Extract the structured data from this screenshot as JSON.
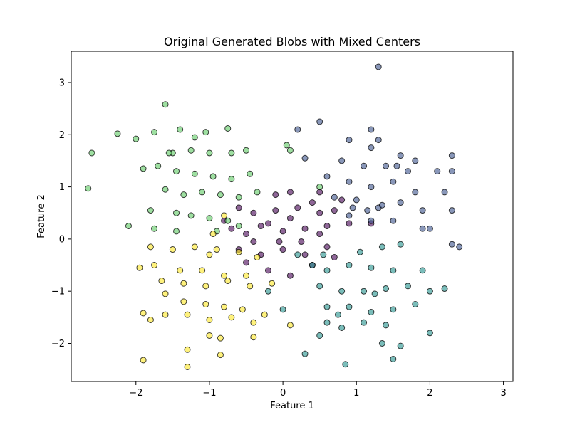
{
  "chart_data": {
    "type": "scatter",
    "title": "Original Generated Blobs with Mixed Centers",
    "xlabel": "Feature 1",
    "ylabel": "Feature 2",
    "xlim": [
      -2.88,
      3.13
    ],
    "ylim": [
      -2.73,
      3.6
    ],
    "xticks": [
      -2,
      -1,
      0,
      1,
      2,
      3
    ],
    "yticks": [
      -2,
      -1,
      0,
      1,
      2,
      3
    ],
    "xtick_labels": [
      "−2",
      "−1",
      "0",
      "1",
      "2",
      "3"
    ],
    "ytick_labels": [
      "−2",
      "−1",
      "0",
      "1",
      "2",
      "3"
    ],
    "grid": false,
    "legend": "none",
    "marker_alpha": 0.6,
    "series": [
      {
        "color": "#440154",
        "points": [
          [
            -0.6,
            0.6
          ],
          [
            -0.4,
            0.5
          ],
          [
            -0.1,
            0.55
          ],
          [
            0.2,
            0.6
          ],
          [
            0.5,
            0.5
          ],
          [
            0.7,
            0.55
          ],
          [
            -0.7,
            0.2
          ],
          [
            -0.5,
            0.1
          ],
          [
            -0.3,
            0.25
          ],
          [
            0.0,
            0.15
          ],
          [
            0.3,
            0.2
          ],
          [
            0.5,
            0.1
          ],
          [
            -0.6,
            -0.2
          ],
          [
            -0.3,
            -0.3
          ],
          [
            0.0,
            -0.2
          ],
          [
            0.3,
            -0.3
          ],
          [
            0.6,
            -0.15
          ],
          [
            0.9,
            0.3
          ],
          [
            -0.2,
            -0.6
          ],
          [
            0.1,
            -0.7
          ],
          [
            -0.5,
            -0.45
          ],
          [
            0.4,
            -0.5
          ],
          [
            0.1,
            0.9
          ],
          [
            -0.1,
            0.85
          ],
          [
            0.5,
            0.9
          ],
          [
            0.8,
            0.75
          ],
          [
            -0.8,
            0.35
          ],
          [
            0.7,
            -0.35
          ],
          [
            1.2,
            0.3
          ],
          [
            -0.05,
            -0.05
          ],
          [
            0.25,
            -0.05
          ],
          [
            -0.4,
            -0.05
          ],
          [
            0.6,
            0.25
          ],
          [
            -0.2,
            0.3
          ],
          [
            0.1,
            0.4
          ],
          [
            0.4,
            0.7
          ]
        ]
      },
      {
        "color": "#3b528b",
        "points": [
          [
            0.9,
            1.9
          ],
          [
            1.2,
            2.1
          ],
          [
            1.3,
            1.9
          ],
          [
            1.6,
            1.6
          ],
          [
            1.8,
            1.5
          ],
          [
            2.3,
            1.6
          ],
          [
            0.8,
            1.5
          ],
          [
            1.1,
            1.4
          ],
          [
            1.4,
            1.4
          ],
          [
            1.7,
            1.3
          ],
          [
            2.1,
            1.3
          ],
          [
            2.3,
            1.3
          ],
          [
            0.6,
            1.2
          ],
          [
            0.9,
            1.1
          ],
          [
            1.2,
            1.0
          ],
          [
            1.5,
            1.1
          ],
          [
            1.8,
            0.9
          ],
          [
            2.2,
            0.9
          ],
          [
            0.7,
            0.8
          ],
          [
            1.0,
            0.75
          ],
          [
            1.3,
            0.6
          ],
          [
            1.6,
            0.7
          ],
          [
            1.9,
            0.55
          ],
          [
            2.3,
            0.55
          ],
          [
            0.9,
            0.45
          ],
          [
            1.2,
            0.35
          ],
          [
            1.5,
            0.35
          ],
          [
            2.0,
            0.2
          ],
          [
            2.3,
            -0.1
          ],
          [
            2.4,
            -0.15
          ],
          [
            1.3,
            3.3
          ],
          [
            0.5,
            2.25
          ],
          [
            0.2,
            2.1
          ],
          [
            1.2,
            1.75
          ],
          [
            1.9,
            0.2
          ],
          [
            0.95,
            0.6
          ],
          [
            1.35,
            0.65
          ],
          [
            1.55,
            1.4
          ],
          [
            0.3,
            1.55
          ],
          [
            1.15,
            0.55
          ]
        ]
      },
      {
        "color": "#21918c",
        "points": [
          [
            0.4,
            -0.5
          ],
          [
            0.6,
            -0.6
          ],
          [
            0.9,
            -0.5
          ],
          [
            1.2,
            -0.55
          ],
          [
            1.5,
            -0.6
          ],
          [
            1.9,
            -0.6
          ],
          [
            0.5,
            -0.9
          ],
          [
            0.8,
            -1.0
          ],
          [
            1.1,
            -1.0
          ],
          [
            1.4,
            -0.95
          ],
          [
            1.7,
            -0.9
          ],
          [
            2.0,
            -1.0
          ],
          [
            0.6,
            -1.3
          ],
          [
            0.9,
            -1.3
          ],
          [
            1.2,
            -1.4
          ],
          [
            1.5,
            -1.35
          ],
          [
            1.8,
            -1.25
          ],
          [
            2.2,
            -0.95
          ],
          [
            0.6,
            -1.6
          ],
          [
            0.8,
            -1.7
          ],
          [
            1.1,
            -1.6
          ],
          [
            1.4,
            -1.65
          ],
          [
            1.6,
            -2.05
          ],
          [
            1.5,
            -2.3
          ],
          [
            0.5,
            -1.85
          ],
          [
            0.85,
            -2.4
          ],
          [
            1.35,
            -2.0
          ],
          [
            2.0,
            -1.8
          ],
          [
            0.3,
            -2.2
          ],
          [
            0.0,
            -1.35
          ],
          [
            -0.2,
            -1.0
          ],
          [
            0.2,
            -0.3
          ],
          [
            0.55,
            -0.3
          ],
          [
            1.05,
            -0.25
          ],
          [
            1.35,
            -0.15
          ],
          [
            1.6,
            -0.1
          ],
          [
            0.75,
            -1.45
          ],
          [
            1.25,
            -1.05
          ]
        ]
      },
      {
        "color": "#5ec962",
        "points": [
          [
            -2.6,
            1.65
          ],
          [
            -2.65,
            0.97
          ],
          [
            -2.25,
            2.02
          ],
          [
            -2.0,
            1.92
          ],
          [
            -1.75,
            2.05
          ],
          [
            -1.6,
            2.58
          ],
          [
            -1.4,
            2.1
          ],
          [
            -1.2,
            1.95
          ],
          [
            -1.05,
            2.05
          ],
          [
            -0.75,
            2.12
          ],
          [
            -1.5,
            1.65
          ],
          [
            -1.25,
            1.7
          ],
          [
            -1.0,
            1.65
          ],
          [
            -0.7,
            1.65
          ],
          [
            -0.5,
            1.7
          ],
          [
            -1.9,
            1.35
          ],
          [
            -1.7,
            1.4
          ],
          [
            -1.45,
            1.3
          ],
          [
            -1.2,
            1.25
          ],
          [
            -0.95,
            1.2
          ],
          [
            -0.7,
            1.15
          ],
          [
            -0.45,
            1.25
          ],
          [
            -1.6,
            0.95
          ],
          [
            -1.35,
            0.85
          ],
          [
            -1.1,
            0.9
          ],
          [
            -0.85,
            0.85
          ],
          [
            -0.6,
            0.8
          ],
          [
            -1.8,
            0.55
          ],
          [
            -1.45,
            0.5
          ],
          [
            -1.25,
            0.45
          ],
          [
            -1.0,
            0.4
          ],
          [
            -0.75,
            0.35
          ],
          [
            -2.1,
            0.25
          ],
          [
            -1.75,
            0.2
          ],
          [
            -1.45,
            0.15
          ],
          [
            -0.9,
            0.15
          ],
          [
            -0.6,
            0.25
          ],
          [
            0.05,
            1.8
          ],
          [
            0.1,
            1.7
          ],
          [
            0.5,
            1.0
          ],
          [
            -0.35,
            0.9
          ],
          [
            -1.55,
            1.65
          ]
        ]
      },
      {
        "color": "#fde725",
        "points": [
          [
            -1.8,
            -0.15
          ],
          [
            -1.5,
            -0.2
          ],
          [
            -1.2,
            -0.15
          ],
          [
            -0.9,
            -0.2
          ],
          [
            -0.6,
            -0.25
          ],
          [
            -0.35,
            -0.35
          ],
          [
            -1.95,
            -0.55
          ],
          [
            -1.75,
            -0.5
          ],
          [
            -1.4,
            -0.6
          ],
          [
            -1.1,
            -0.6
          ],
          [
            -0.8,
            -0.7
          ],
          [
            -0.5,
            -0.7
          ],
          [
            -1.65,
            -0.8
          ],
          [
            -1.35,
            -0.85
          ],
          [
            -1.05,
            -0.9
          ],
          [
            -0.75,
            -0.8
          ],
          [
            -0.45,
            -0.9
          ],
          [
            -0.15,
            -0.85
          ],
          [
            -1.6,
            -1.05
          ],
          [
            -1.35,
            -1.2
          ],
          [
            -1.05,
            -1.25
          ],
          [
            -0.8,
            -1.3
          ],
          [
            -0.55,
            -1.35
          ],
          [
            -0.25,
            -1.45
          ],
          [
            -1.9,
            -1.42
          ],
          [
            -1.8,
            -1.55
          ],
          [
            -1.6,
            -1.45
          ],
          [
            -1.3,
            -1.45
          ],
          [
            -1.0,
            -1.55
          ],
          [
            -0.7,
            -1.5
          ],
          [
            -0.4,
            -1.6
          ],
          [
            -1.0,
            -1.85
          ],
          [
            -0.85,
            -1.9
          ],
          [
            -0.4,
            -1.88
          ],
          [
            -1.9,
            -2.32
          ],
          [
            -1.3,
            -2.12
          ],
          [
            -0.85,
            -2.22
          ],
          [
            -1.3,
            -2.45
          ],
          [
            0.1,
            -1.65
          ],
          [
            -1.0,
            -0.3
          ],
          [
            -0.8,
            0.45
          ],
          [
            -0.95,
            0.1
          ]
        ]
      }
    ]
  }
}
